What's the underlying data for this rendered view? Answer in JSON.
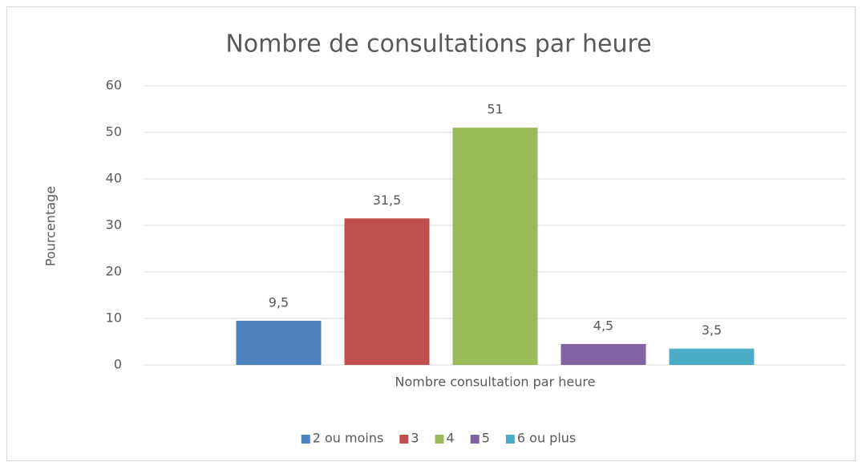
{
  "chart_data": {
    "type": "bar",
    "title": "Nombre de consultations par heure",
    "y_label": "Pourcentage",
    "categories": [
      "Nombre  consultation par heure"
    ],
    "series": [
      {
        "name": "2 ou moins",
        "color": "#4f81bd",
        "values": [
          9.5
        ],
        "value_labels": [
          "9,5"
        ]
      },
      {
        "name": "3",
        "color": "#c0504d",
        "values": [
          31.5
        ],
        "value_labels": [
          "31,5"
        ]
      },
      {
        "name": "4",
        "color": "#9bbb59",
        "values": [
          51
        ],
        "value_labels": [
          "51"
        ]
      },
      {
        "name": "5",
        "color": "#8064a2",
        "values": [
          4.5
        ],
        "value_labels": [
          "4,5"
        ]
      },
      {
        "name": "6 ou plus",
        "color": "#4bacc6",
        "values": [
          3.5
        ],
        "value_labels": [
          "3,5"
        ]
      }
    ],
    "ylim": [
      0,
      60
    ],
    "yticks": [
      0,
      10,
      20,
      30,
      40,
      50,
      60
    ],
    "grid": true,
    "legend": "bottom"
  }
}
